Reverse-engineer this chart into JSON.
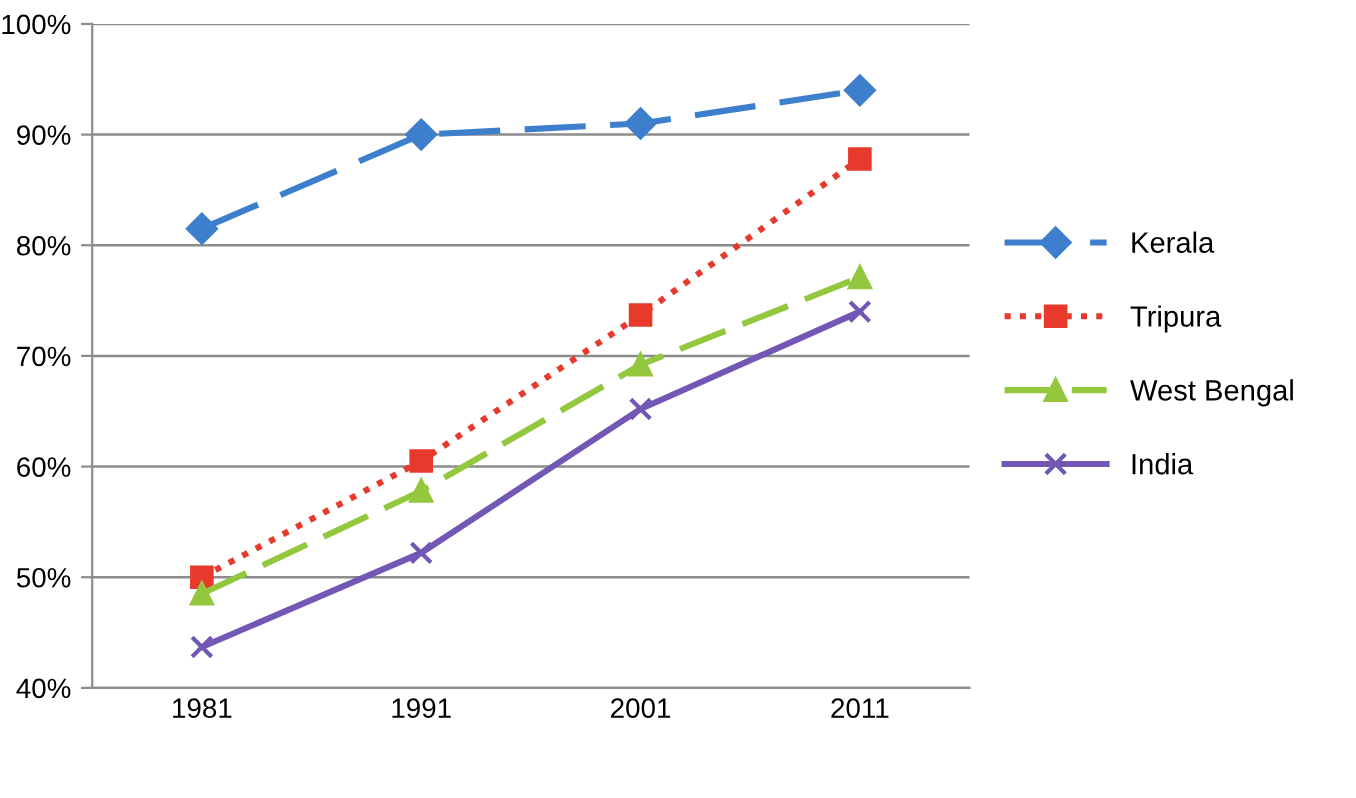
{
  "chart_data": {
    "type": "line",
    "categories": [
      "1981",
      "1991",
      "2001",
      "2011"
    ],
    "series": [
      {
        "name": "Kerala",
        "color": "#3d7fcc",
        "values": [
          81.5,
          90,
          91,
          94
        ],
        "marker": "diamond",
        "line_style": "dashed"
      },
      {
        "name": "Tripura",
        "color": "#e83a2c",
        "values": [
          50,
          60.5,
          73.7,
          87.8
        ],
        "marker": "square",
        "line_style": "dotted"
      },
      {
        "name": "West Bengal",
        "color": "#93c83e",
        "values": [
          48.5,
          57.8,
          69.2,
          77.1
        ],
        "marker": "triangle",
        "line_style": "dashed"
      },
      {
        "name": "India",
        "color": "#7357b5",
        "values": [
          43.7,
          52.2,
          65.2,
          74
        ],
        "marker": "cross",
        "line_style": "solid"
      }
    ],
    "ylim": [
      40,
      100
    ],
    "yticks": [
      {
        "value": 40,
        "label": "40%"
      },
      {
        "value": 50,
        "label": "50%"
      },
      {
        "value": 60,
        "label": "60%"
      },
      {
        "value": 70,
        "label": "70%"
      },
      {
        "value": 80,
        "label": "80%"
      },
      {
        "value": 90,
        "label": "90%"
      },
      {
        "value": 100,
        "label": "100%"
      }
    ],
    "grid": "y",
    "legend": "right"
  }
}
